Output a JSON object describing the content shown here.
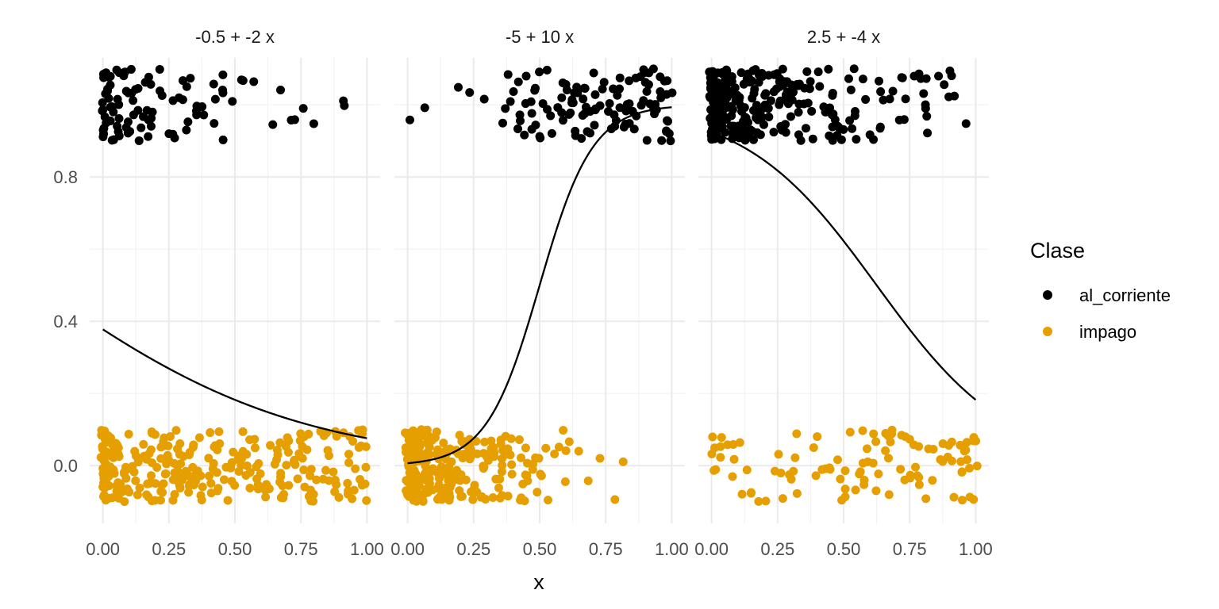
{
  "chart_data": {
    "type": "scatter",
    "facets": [
      {
        "label": "-0.5 + -2 x",
        "intercept": -0.5,
        "slope": -2
      },
      {
        "label": "-5 + 10 x",
        "intercept": -5,
        "slope": 10
      },
      {
        "label": "2.5 + -4 x",
        "intercept": 2.5,
        "slope": -4
      }
    ],
    "xlabel": "x",
    "ylabel": "",
    "x_ticks": [
      "0.00",
      "0.25",
      "0.50",
      "0.75",
      "1.00"
    ],
    "y_ticks": [
      "0.0",
      "0.4",
      "0.8"
    ],
    "xlim": [
      -0.05,
      1.05
    ],
    "ylim": [
      -0.16,
      1.13
    ],
    "series": [
      {
        "name": "al_corriente",
        "color": "#000000",
        "y_value": 1,
        "jitter": 0.1
      },
      {
        "name": "impago",
        "color": "#E69F00",
        "y_value": 0,
        "jitter": 0.1
      }
    ],
    "curve": "logistic: 1 / (1 + exp(-(intercept + slope * x)))",
    "grid": true,
    "legend": {
      "title": "Clase",
      "position": "right"
    }
  }
}
